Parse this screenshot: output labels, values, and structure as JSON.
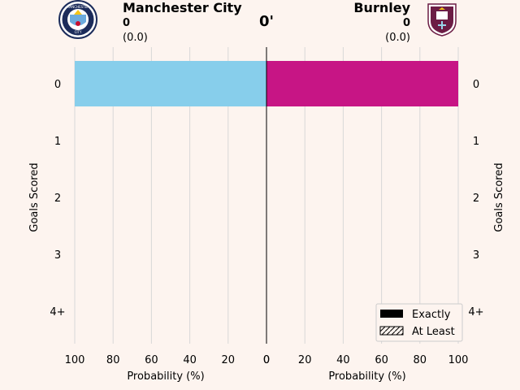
{
  "match": {
    "minute": "0'",
    "home": {
      "name": "Manchester City",
      "score": "0",
      "xg": "(0.0)",
      "crest_icon": "manchester-city-crest-icon",
      "color": "#87ceeb"
    },
    "away": {
      "name": "Burnley",
      "score": "0",
      "xg": "(0.0)",
      "crest_icon": "burnley-crest-icon",
      "color": "#c71585"
    }
  },
  "chart_data": [
    {
      "type": "bar",
      "orientation": "horizontal",
      "team": "Manchester City",
      "categories": [
        "0",
        "1",
        "2",
        "3",
        "4+"
      ],
      "series": [
        {
          "name": "Exactly",
          "values": [
            100,
            0,
            0,
            0,
            0
          ]
        },
        {
          "name": "At Least",
          "values": [
            100,
            0,
            0,
            0,
            0
          ]
        }
      ],
      "xlabel": "Probability (%)",
      "ylabel": "Goals Scored",
      "xlim": [
        100,
        0
      ],
      "xticks": [
        "100",
        "80",
        "60",
        "40",
        "20",
        "0"
      ],
      "grid": true
    },
    {
      "type": "bar",
      "orientation": "horizontal",
      "team": "Burnley",
      "categories": [
        "0",
        "1",
        "2",
        "3",
        "4+"
      ],
      "series": [
        {
          "name": "Exactly",
          "values": [
            100,
            0,
            0,
            0,
            0
          ]
        },
        {
          "name": "At Least",
          "values": [
            100,
            0,
            0,
            0,
            0
          ]
        }
      ],
      "xlabel": "Probability (%)",
      "ylabel": "Goals Scored",
      "xlim": [
        0,
        100
      ],
      "xticks": [
        "0",
        "20",
        "40",
        "60",
        "80",
        "100"
      ],
      "grid": true
    }
  ],
  "legend": {
    "placement": "bottom-right",
    "items": [
      {
        "label": "Exactly",
        "style": "solid"
      },
      {
        "label": "At Least",
        "style": "hatched"
      }
    ]
  }
}
